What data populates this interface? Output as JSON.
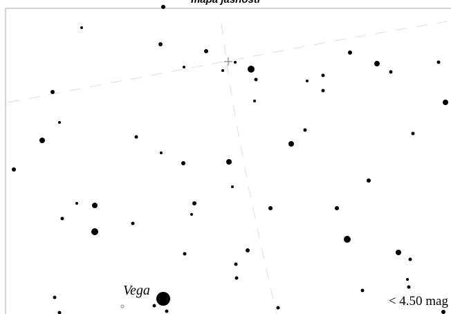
{
  "map": {
    "title": "mapa jasnosti",
    "star_label": "Vega",
    "magnitude_limit": "< 4.50 mag"
  }
}
